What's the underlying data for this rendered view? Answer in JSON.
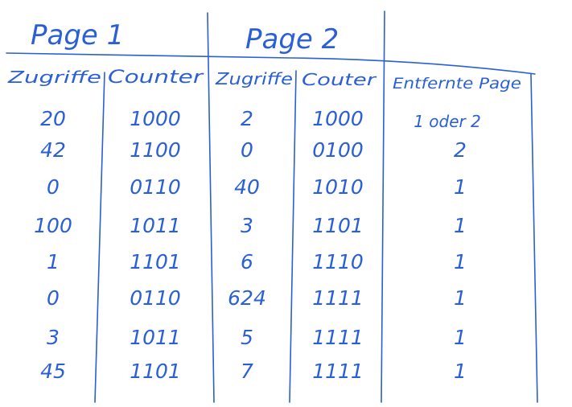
{
  "sheet": {
    "ink_color": "#2a5fd6",
    "group_titles": [
      "Page 1",
      "Page 2"
    ],
    "headers": [
      "Zugriffe",
      "Counter",
      "Zugriffe",
      "Couter",
      "Entfernte Page"
    ],
    "subheader": "1 oder 2",
    "rows": [
      [
        "20",
        "1000",
        "2",
        "1000",
        ""
      ],
      [
        "42",
        "1100",
        "0",
        "0100",
        "2"
      ],
      [
        "0",
        "0110",
        "40",
        "1010",
        "1"
      ],
      [
        "100",
        "1011",
        "3",
        "1101",
        "1"
      ],
      [
        "1",
        "1101",
        "6",
        "1110",
        "1"
      ],
      [
        "0",
        "0110",
        "624",
        "1111",
        "1"
      ],
      [
        "3",
        "1011",
        "5",
        "1111",
        "1"
      ],
      [
        "45",
        "1101",
        "7",
        "1111",
        "1"
      ]
    ]
  }
}
